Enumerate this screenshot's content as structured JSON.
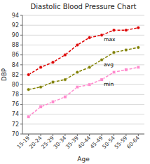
{
  "chart_data": {
    "type": "line",
    "title": "Diastolic Blood Pressure Chart",
    "x_label": "Age",
    "y_label": "DBP",
    "categories": [
      "15-19",
      "20-24",
      "25-29",
      "30-34",
      "35-39",
      "40-44",
      "45-49",
      "50-54",
      "55-59",
      "60-64"
    ],
    "series": [
      {
        "color": "#dd0000",
        "marker": "circle",
        "line_style": "dashed",
        "values": [
          82,
          83.5,
          84.5,
          86,
          88,
          89.5,
          90,
          91,
          91,
          91.5
        ]
      },
      {
        "color": "#808000",
        "marker": "circle",
        "line_style": "dashed",
        "values": [
          79,
          79.5,
          80.5,
          81,
          82.5,
          83.5,
          85,
          86.5,
          87,
          87.5
        ]
      },
      {
        "color": "#ff88cc",
        "marker": "square",
        "line_style": "dashed",
        "values": [
          73.5,
          75.5,
          76.5,
          77.5,
          79.5,
          80,
          81,
          82.5,
          83,
          83.5
        ]
      }
    ],
    "annotations": [
      {
        "text": "max",
        "x": "45-49",
        "y": 90
      },
      {
        "text": "avg",
        "x": "45-49",
        "y": 85
      },
      {
        "text": "min",
        "x": "45-49",
        "y": 81
      }
    ],
    "ylim": [
      70,
      94
    ],
    "yticks": [
      70,
      72,
      74,
      76,
      78,
      80,
      82,
      84,
      86,
      88,
      90,
      92,
      94
    ],
    "grid": true
  }
}
